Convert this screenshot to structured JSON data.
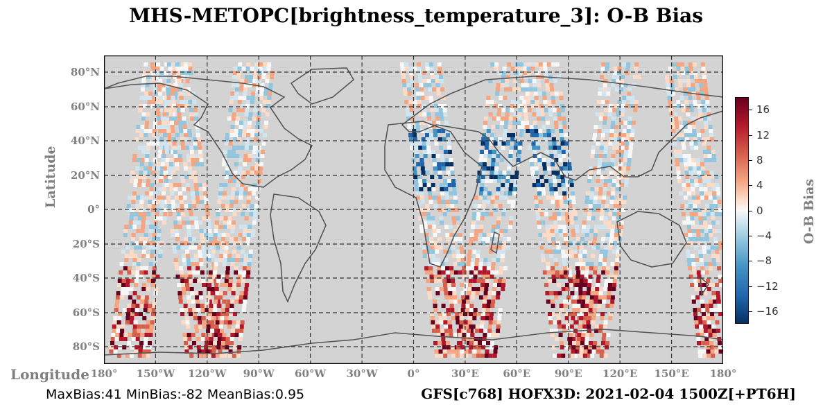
{
  "title": "MHS-METOPC[brightness_temperature_3]: O-B Bias",
  "axes": {
    "ylabel": "Latitude",
    "xlabel": "Longitude",
    "lat_ticks": [
      "80°N",
      "60°N",
      "40°N",
      "20°N",
      "0°",
      "20°S",
      "40°S",
      "60°S",
      "80°S"
    ],
    "lon_ticks": [
      "180°",
      "150°W",
      "120°W",
      "90°W",
      "60°W",
      "30°W",
      "0°",
      "30°E",
      "60°E",
      "90°E",
      "120°E",
      "150°E",
      "180°"
    ]
  },
  "colorbar": {
    "label": "O-B Bias",
    "ticks": [
      "16",
      "12",
      "8",
      "4",
      "0",
      "−4",
      "−8",
      "−12",
      "−16"
    ],
    "colormap": "RdBu_r",
    "range": [
      -18,
      18
    ]
  },
  "footer": {
    "stats": "MaxBias:41 MinBias:-82 MeanBias:0.95",
    "run": "GFS[c768] HOFX3D: 2021-02-04 1500Z[+PT6H]"
  },
  "colors": {
    "land_ocean_background": "#d3d3d3",
    "coastline": "#555555",
    "grid": "#333333"
  }
}
